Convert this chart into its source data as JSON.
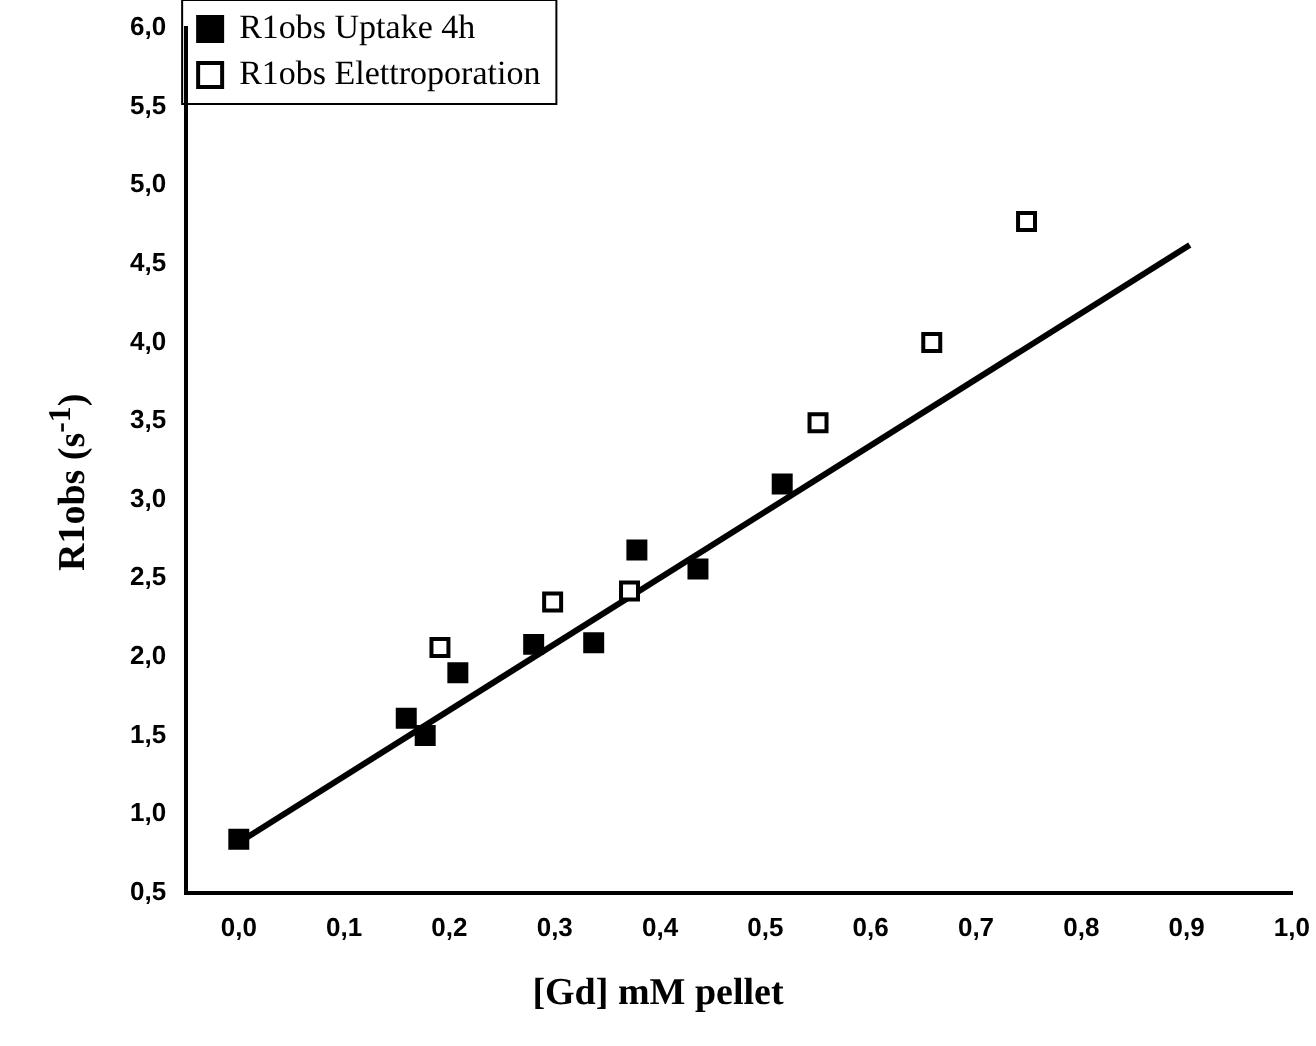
{
  "chart_data": {
    "type": "scatter",
    "xlabel": "[Gd] mM pellet",
    "ylabel": "R1obs (s$^{-1}$)",
    "xlim": [
      -0.05,
      1.0
    ],
    "xticks": [
      {
        "value": 0,
        "label": "0,0"
      },
      {
        "value": 0.1,
        "label": "0,1"
      },
      {
        "value": 0.2,
        "label": "0,2"
      },
      {
        "value": 0.3,
        "label": "0,3"
      },
      {
        "value": 0.4,
        "label": "0,4"
      },
      {
        "value": 0.5,
        "label": "0,5"
      },
      {
        "value": 0.6,
        "label": "0,6"
      },
      {
        "value": 0.7,
        "label": "0,7"
      },
      {
        "value": 0.8,
        "label": "0,8"
      },
      {
        "value": 0.9,
        "label": "0,9"
      },
      {
        "value": 1.0,
        "label": "1,0"
      }
    ],
    "ylim": [
      0.5,
      6.0
    ],
    "yticks": [
      {
        "value": 0.5,
        "label": "0,5"
      },
      {
        "value": 1.0,
        "label": "1,0"
      },
      {
        "value": 1.5,
        "label": "1,5"
      },
      {
        "value": 2.0,
        "label": "2,0"
      },
      {
        "value": 2.5,
        "label": "2,5"
      },
      {
        "value": 3.0,
        "label": "3,0"
      },
      {
        "value": 3.5,
        "label": "3,5"
      },
      {
        "value": 4.0,
        "label": "4,0"
      },
      {
        "value": 4.5,
        "label": "4,5"
      },
      {
        "value": 5.0,
        "label": "5,0"
      },
      {
        "value": 5.5,
        "label": "5,5"
      },
      {
        "value": 6.0,
        "label": "6,0"
      }
    ],
    "grid": false,
    "legend": "top left",
    "marker": "square",
    "series": [
      {
        "name": "R1obs Uptake 4h",
        "color": "#000000",
        "x": [
          0.0,
          0.159,
          0.177,
          0.208,
          0.28,
          0.337,
          0.378,
          0.436,
          0.516
        ],
        "values": [
          0.84,
          1.61,
          1.5,
          1.9,
          2.08,
          2.09,
          2.68,
          2.56,
          3.1
        ]
      },
      {
        "name": "R1obs Elettroporation",
        "color": "#ffffff",
        "x": [
          0.191,
          0.298,
          0.371,
          0.55,
          0.658,
          0.748
        ],
        "values": [
          2.06,
          2.35,
          2.42,
          3.49,
          4.0,
          4.77
        ]
      },
      {
        "type": "line",
        "color": "#000000",
        "x": [
          0.0,
          0.903
        ],
        "values": [
          0.82,
          4.62
        ],
        "marker": "none"
      }
    ]
  }
}
